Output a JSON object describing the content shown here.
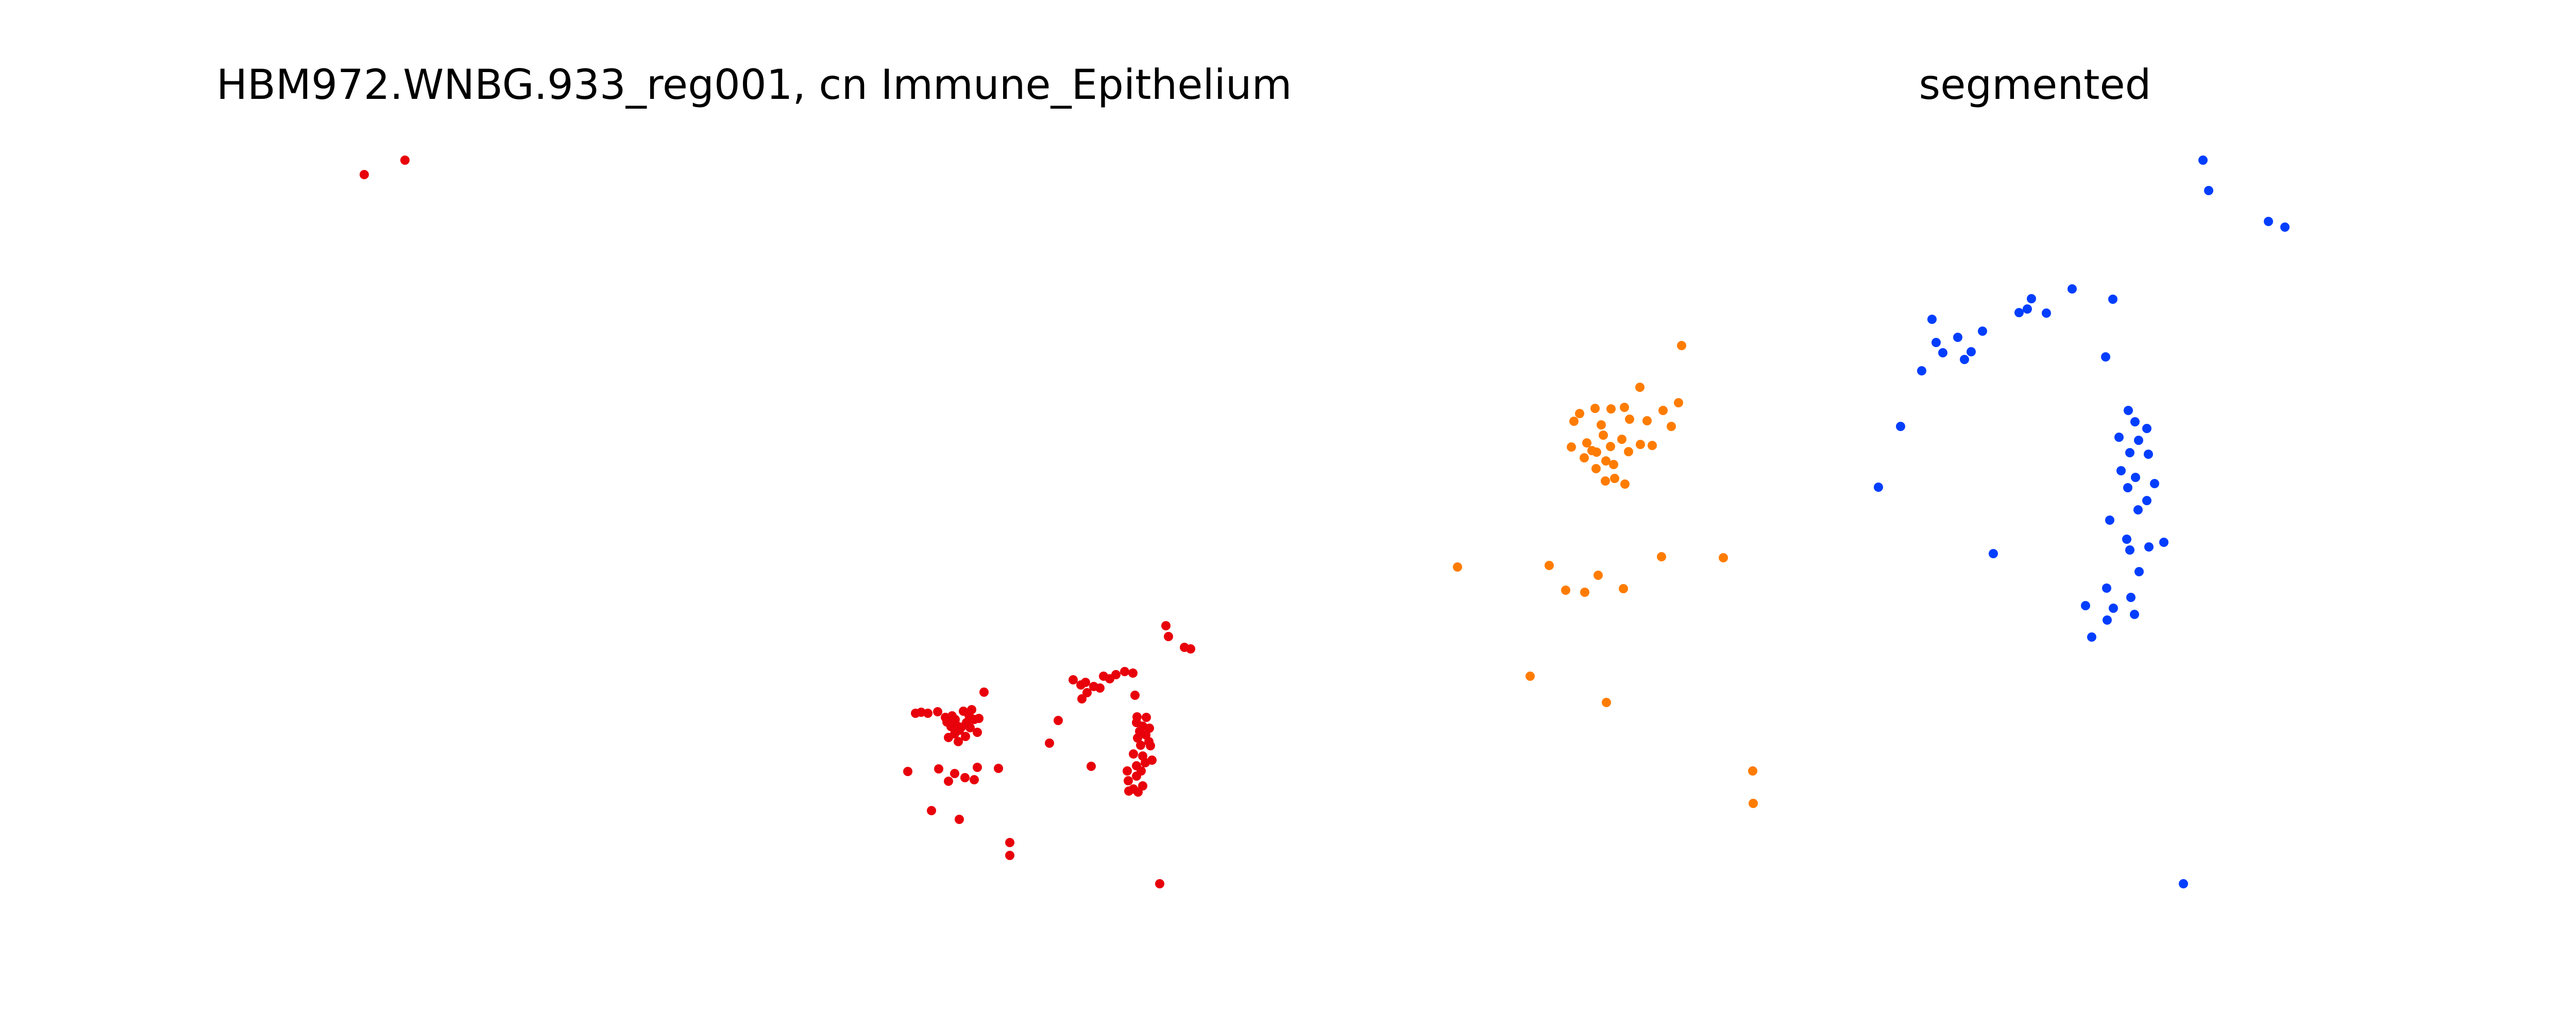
{
  "chart_data": [
    {
      "type": "scatter",
      "title": "HBM972.WNBG.933_reg001, cn Immune_Epithelium",
      "axes_visible": false,
      "grid": false,
      "series": [
        {
          "color": "#e8000b",
          "points": [
            [
              707,
              339
            ],
            [
              786,
              311
            ],
            [
              1777,
              1385
            ],
            [
              1788,
              1383
            ],
            [
              1801,
              1385
            ],
            [
              1820,
              1382
            ],
            [
              1848,
              1390
            ],
            [
              1835,
              1393
            ],
            [
              1854,
              1397
            ],
            [
              1838,
              1402
            ],
            [
              1856,
              1408
            ],
            [
              1846,
              1411
            ],
            [
              1866,
              1412
            ],
            [
              1876,
              1403
            ],
            [
              1862,
              1418
            ],
            [
              1883,
              1413
            ],
            [
              1891,
              1397
            ],
            [
              1881,
              1389
            ],
            [
              1910,
              1344
            ],
            [
              1900,
              1395
            ],
            [
              1886,
              1378
            ],
            [
              1870,
              1381
            ],
            [
              1853,
              1425
            ],
            [
              1874,
              1430
            ],
            [
              1897,
              1422
            ],
            [
              1841,
              1432
            ],
            [
              1860,
              1440
            ],
            [
              1762,
              1498
            ],
            [
              1822,
              1493
            ],
            [
              1841,
              1517
            ],
            [
              1853,
              1502
            ],
            [
              1873,
              1510
            ],
            [
              1891,
              1514
            ],
            [
              1897,
              1490
            ],
            [
              1938,
              1492
            ],
            [
              1808,
              1574
            ],
            [
              1862,
              1591
            ],
            [
              1960,
              1636
            ],
            [
              1960,
              1661
            ],
            [
              2037,
              1443
            ],
            [
              2054,
              1399
            ],
            [
              2083,
              1320
            ],
            [
              2098,
              1330
            ],
            [
              2100,
              1357
            ],
            [
              2110,
              1345
            ],
            [
              2123,
              1333
            ],
            [
              2135,
              1336
            ],
            [
              2107,
              1325
            ],
            [
              2142,
              1313
            ],
            [
              2154,
              1318
            ],
            [
              2166,
              1310
            ],
            [
              2183,
              1304
            ],
            [
              2199,
              1307
            ],
            [
              2203,
              1350
            ],
            [
              2118,
              1488
            ],
            [
              2207,
              1392
            ],
            [
              2225,
              1393
            ],
            [
              2206,
              1403
            ],
            [
              2218,
              1410
            ],
            [
              2231,
              1414
            ],
            [
              2212,
              1420
            ],
            [
              2224,
              1427
            ],
            [
              2208,
              1433
            ],
            [
              2230,
              1440
            ],
            [
              2214,
              1447
            ],
            [
              2233,
              1448
            ],
            [
              2200,
              1464
            ],
            [
              2218,
              1468
            ],
            [
              2236,
              1476
            ],
            [
              2223,
              1481
            ],
            [
              2206,
              1487
            ],
            [
              2188,
              1497
            ],
            [
              2215,
              1497
            ],
            [
              2206,
              1507
            ],
            [
              2190,
              1516
            ],
            [
              2218,
              1526
            ],
            [
              2200,
              1532
            ],
            [
              2209,
              1538
            ],
            [
              2191,
              1536
            ],
            [
              2263,
              1215
            ],
            [
              2268,
              1236
            ],
            [
              2299,
              1257
            ],
            [
              2311,
              1260
            ],
            [
              2251,
              1716
            ]
          ]
        }
      ]
    },
    {
      "type": "scatter",
      "title": "segmented",
      "axes_visible": false,
      "grid": false,
      "series": [
        {
          "color": "#ff7c00",
          "points": [
            [
              3264,
              671
            ],
            [
              3183,
              752
            ],
            [
              3258,
              782
            ],
            [
              3153,
              791
            ],
            [
              3127,
              794
            ],
            [
              3096,
              793
            ],
            [
              3228,
              797
            ],
            [
              3163,
              814
            ],
            [
              3055,
              818
            ],
            [
              3066,
              803
            ],
            [
              3108,
              825
            ],
            [
              3184,
              863
            ],
            [
              3050,
              868
            ],
            [
              3197,
              817
            ],
            [
              3244,
              828
            ],
            [
              3112,
              845
            ],
            [
              3126,
              867
            ],
            [
              3148,
              853
            ],
            [
              3075,
              889
            ],
            [
              3080,
              860
            ],
            [
              3099,
              878
            ],
            [
              3117,
              895
            ],
            [
              3161,
              877
            ],
            [
              3090,
              875
            ],
            [
              3098,
              910
            ],
            [
              3132,
              902
            ],
            [
              3116,
              934
            ],
            [
              3134,
              929
            ],
            [
              3154,
              940
            ],
            [
              3207,
              865
            ],
            [
              2829,
              1101
            ],
            [
              3007,
              1098
            ],
            [
              3225,
              1081
            ],
            [
              3345,
              1083
            ],
            [
              3102,
              1117
            ],
            [
              3039,
              1146
            ],
            [
              3076,
              1150
            ],
            [
              3151,
              1143
            ],
            [
              2970,
              1313
            ],
            [
              3118,
              1364
            ],
            [
              3402,
              1497
            ],
            [
              3403,
              1560
            ]
          ]
        },
        {
          "color": "#023eff",
          "points": [
            [
              4276,
              311
            ],
            [
              4287,
              370
            ],
            [
              4403,
              430
            ],
            [
              4435,
              441
            ],
            [
              3750,
              620
            ],
            [
              3758,
              665
            ],
            [
              3771,
              685
            ],
            [
              3800,
              655
            ],
            [
              3826,
              683
            ],
            [
              3813,
              698
            ],
            [
              3848,
              643
            ],
            [
              3730,
              720
            ],
            [
              3935,
              600
            ],
            [
              3919,
              607
            ],
            [
              3943,
              580
            ],
            [
              3972,
              608
            ],
            [
              4022,
              561
            ],
            [
              4101,
              581
            ],
            [
              4087,
              693
            ],
            [
              3689,
              828
            ],
            [
              3646,
              946
            ],
            [
              3869,
              1075
            ],
            [
              4131,
              797
            ],
            [
              4144,
              819
            ],
            [
              4167,
              832
            ],
            [
              4113,
              849
            ],
            [
              4151,
              855
            ],
            [
              4134,
              879
            ],
            [
              4170,
              882
            ],
            [
              4117,
              914
            ],
            [
              4145,
              927
            ],
            [
              4130,
              947
            ],
            [
              4182,
              939
            ],
            [
              4167,
              972
            ],
            [
              4150,
              990
            ],
            [
              4095,
              1010
            ],
            [
              4128,
              1047
            ],
            [
              4134,
              1068
            ],
            [
              4171,
              1062
            ],
            [
              4200,
              1053
            ],
            [
              4152,
              1110
            ],
            [
              4089,
              1142
            ],
            [
              4136,
              1160
            ],
            [
              4143,
              1193
            ],
            [
              4102,
              1181
            ],
            [
              4048,
              1176
            ],
            [
              4090,
              1204
            ],
            [
              4060,
              1237
            ],
            [
              4238,
              1716
            ]
          ]
        }
      ]
    }
  ]
}
